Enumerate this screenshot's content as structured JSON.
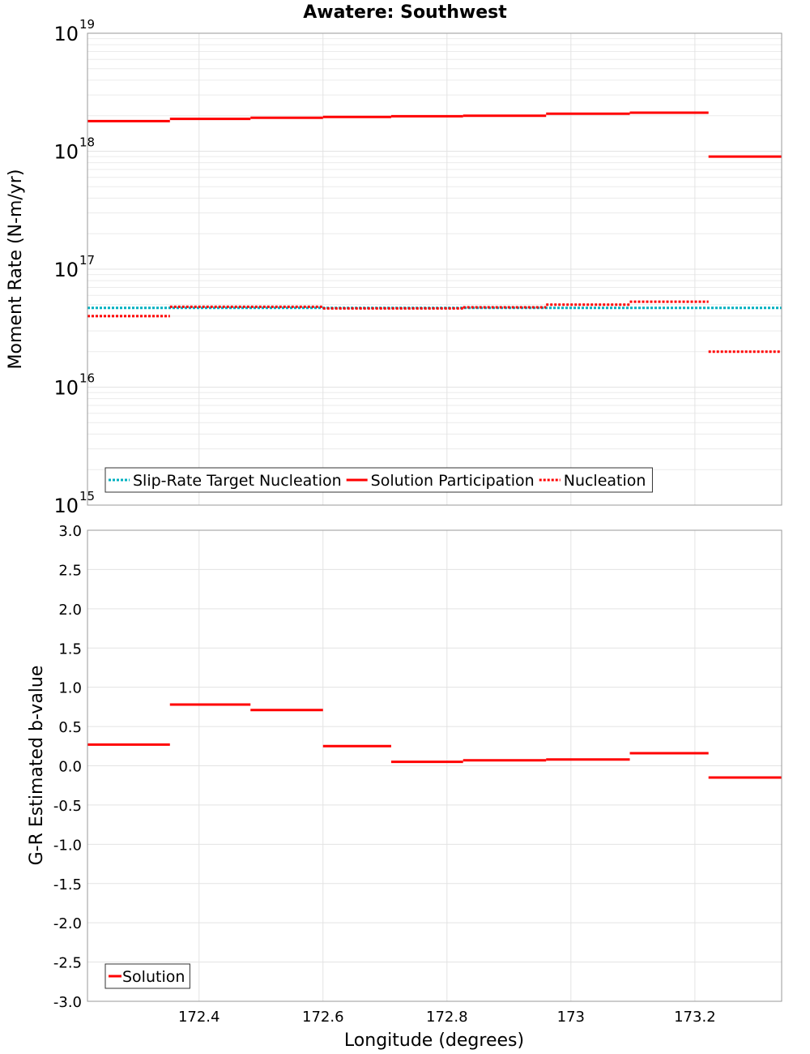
{
  "chart_data": [
    {
      "type": "line",
      "title": "Awatere: Southwest",
      "ylabel": "Moment Rate (N-m/yr)",
      "yscale": "log",
      "ylim": [
        1000000000000000.0,
        1e+19
      ],
      "yticks": [
        {
          "exp": "15",
          "base": "10"
        },
        {
          "exp": "16",
          "base": "10"
        },
        {
          "exp": "17",
          "base": "10"
        },
        {
          "exp": "18",
          "base": "10"
        },
        {
          "exp": "19",
          "base": "10"
        }
      ],
      "xlim": [
        172.22,
        173.34
      ],
      "grid": true,
      "legend_position": "bottom-left",
      "series": [
        {
          "name": "Slip-Rate Target Nucleation",
          "style": "dotted",
          "color": "#00b0c0",
          "segments": [
            [
              172.22,
              173.34,
              4.7e+16
            ]
          ]
        },
        {
          "name": "Solution Participation",
          "style": "solid",
          "color": "#ff0000",
          "segments": [
            [
              172.22,
              172.353,
              1.8e+18
            ],
            [
              172.353,
              172.483,
              1.88e+18
            ],
            [
              172.483,
              172.6,
              1.92e+18
            ],
            [
              172.6,
              172.71,
              1.95e+18
            ],
            [
              172.71,
              172.826,
              1.98e+18
            ],
            [
              172.826,
              172.96,
              2e+18
            ],
            [
              172.96,
              173.095,
              2.08e+18
            ],
            [
              173.095,
              173.222,
              2.12e+18
            ],
            [
              173.222,
              173.34,
              9e+17
            ]
          ]
        },
        {
          "name": "Nucleation",
          "style": "dotted",
          "color": "#ff0000",
          "segments": [
            [
              172.22,
              172.353,
              4e+16
            ],
            [
              172.353,
              172.6,
              4.8e+16
            ],
            [
              172.6,
              172.826,
              4.65e+16
            ],
            [
              172.826,
              172.96,
              4.75e+16
            ],
            [
              172.96,
              173.095,
              5e+16
            ],
            [
              173.095,
              173.222,
              5.3e+16
            ],
            [
              173.222,
              173.34,
              2e+16
            ]
          ]
        }
      ]
    },
    {
      "type": "line",
      "xlabel": "Longitude (degrees)",
      "ylabel": "G-R Estimated b-value",
      "ylim": [
        -3.0,
        3.0
      ],
      "yticks": [
        "3.0",
        "2.5",
        "2.0",
        "1.5",
        "1.0",
        "0.5",
        "0.0",
        "-0.5",
        "-1.0",
        "-1.5",
        "-2.0",
        "-2.5",
        "-3.0"
      ],
      "xlim": [
        172.22,
        173.34
      ],
      "xticks": [
        "172.4",
        "172.6",
        "172.8",
        "173",
        "173.2"
      ],
      "grid": true,
      "legend_position": "bottom-left",
      "series": [
        {
          "name": "Solution",
          "style": "solid",
          "color": "#ff0000",
          "segments": [
            [
              172.22,
              172.353,
              0.27
            ],
            [
              172.353,
              172.483,
              0.78
            ],
            [
              172.483,
              172.6,
              0.71
            ],
            [
              172.6,
              172.71,
              0.25
            ],
            [
              172.71,
              172.826,
              0.05
            ],
            [
              172.826,
              172.96,
              0.07
            ],
            [
              172.96,
              173.095,
              0.08
            ],
            [
              173.095,
              173.222,
              0.16
            ],
            [
              173.222,
              173.34,
              -0.15
            ]
          ]
        }
      ]
    }
  ]
}
